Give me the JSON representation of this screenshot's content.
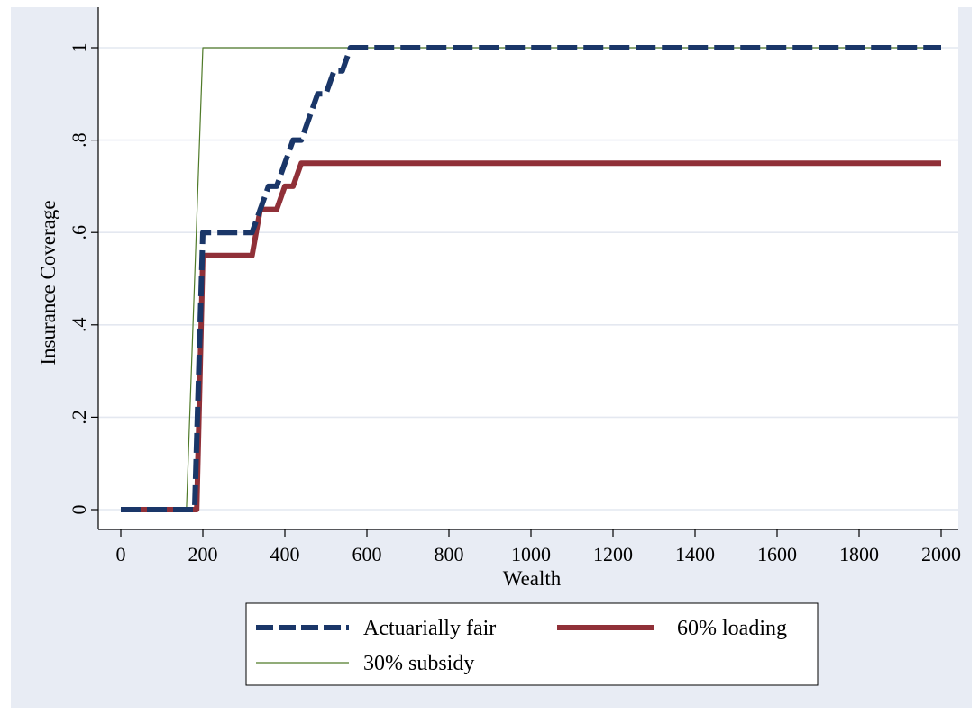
{
  "chart_data": {
    "type": "line",
    "title": "",
    "xlabel": "Wealth",
    "ylabel": "Insurance Coverage",
    "xlim": [
      0,
      2000
    ],
    "ylim": [
      0,
      1
    ],
    "x_ticks": [
      "0",
      "200",
      "400",
      "600",
      "800",
      "1000",
      "1200",
      "1400",
      "1600",
      "1800",
      "2000"
    ],
    "x_tick_values": [
      0,
      200,
      400,
      600,
      800,
      1000,
      1200,
      1400,
      1600,
      1800,
      2000
    ],
    "y_ticks": [
      "0",
      ".2",
      ".4",
      ".6",
      ".8",
      "1"
    ],
    "y_tick_values": [
      0,
      0.2,
      0.4,
      0.6,
      0.8,
      1
    ],
    "grid": "horizontal",
    "legend_position": "bottom",
    "series": [
      {
        "name": "Actuarially fair",
        "color": "#1a3668",
        "style": "dashed",
        "points": [
          [
            0,
            0
          ],
          [
            180,
            0
          ],
          [
            200,
            0.6
          ],
          [
            320,
            0.6
          ],
          [
            340,
            0.65
          ],
          [
            360,
            0.7
          ],
          [
            380,
            0.7
          ],
          [
            400,
            0.75
          ],
          [
            420,
            0.8
          ],
          [
            440,
            0.8
          ],
          [
            460,
            0.85
          ],
          [
            480,
            0.9
          ],
          [
            500,
            0.9
          ],
          [
            520,
            0.95
          ],
          [
            540,
            0.95
          ],
          [
            560,
            1
          ],
          [
            2000,
            1
          ]
        ]
      },
      {
        "name": "60% loading",
        "color": "#903038",
        "style": "solid-thick",
        "points": [
          [
            0,
            0
          ],
          [
            185,
            0
          ],
          [
            200,
            0.55
          ],
          [
            320,
            0.55
          ],
          [
            340,
            0.65
          ],
          [
            380,
            0.65
          ],
          [
            400,
            0.7
          ],
          [
            420,
            0.7
          ],
          [
            440,
            0.75
          ],
          [
            2000,
            0.75
          ]
        ]
      },
      {
        "name": "30% subsidy",
        "color": "#4f7a28",
        "style": "solid-thin",
        "points": [
          [
            0,
            0
          ],
          [
            160,
            0
          ],
          [
            200,
            1
          ],
          [
            2000,
            1
          ]
        ]
      }
    ]
  }
}
